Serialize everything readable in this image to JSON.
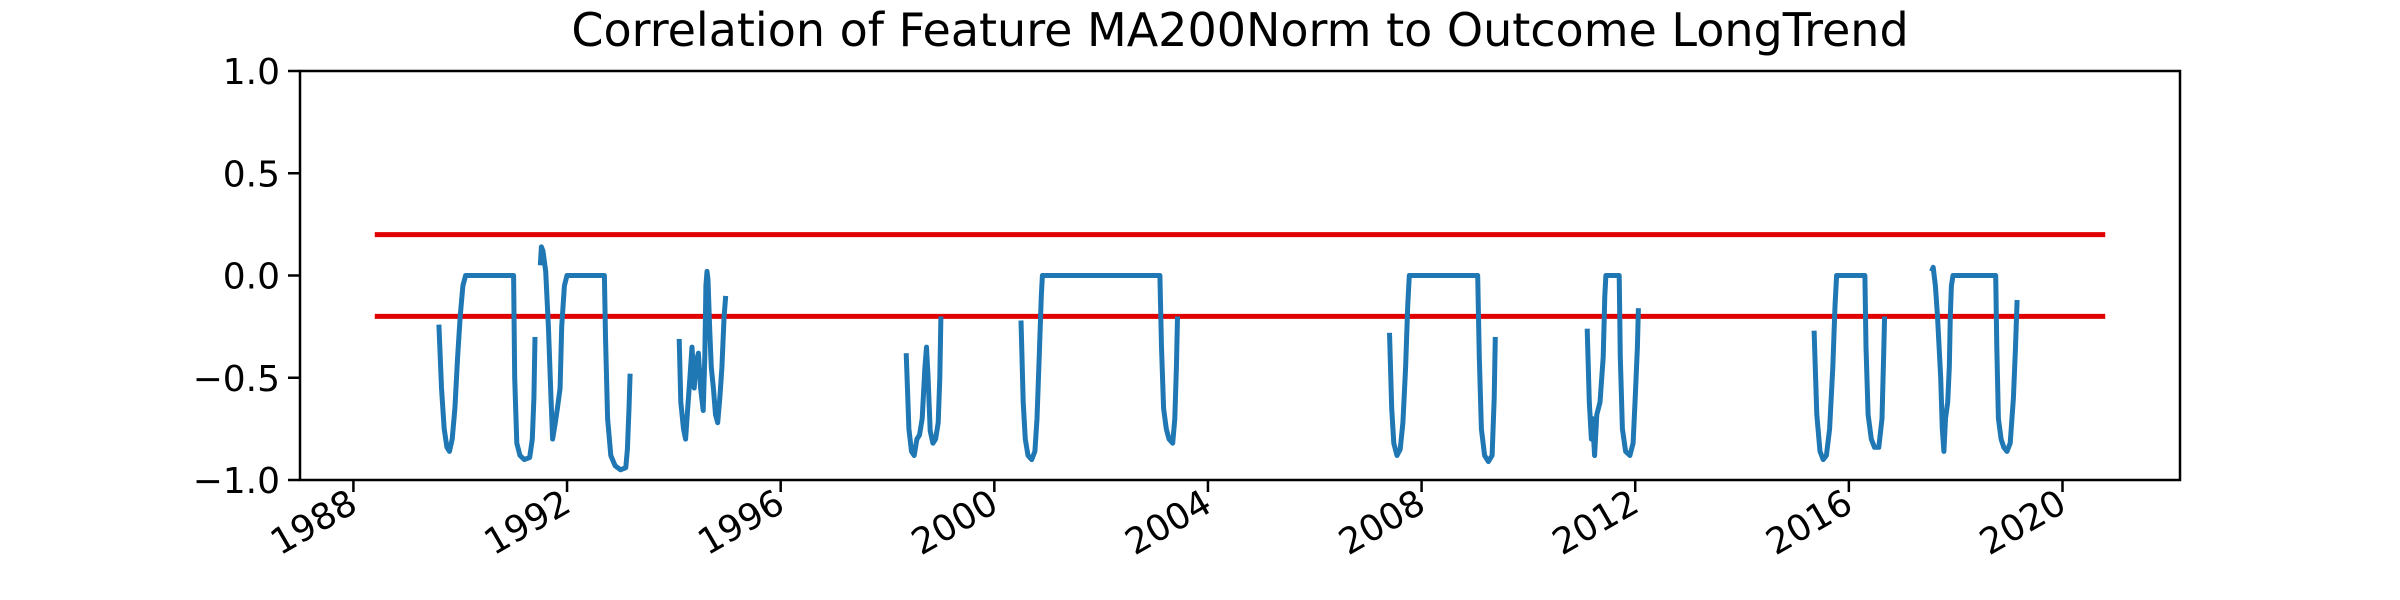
{
  "chart_data": {
    "type": "line",
    "title": "Correlation of Feature MA200Norm to Outcome LongTrend",
    "xlabel": "",
    "ylabel": "",
    "xlim": [
      1987.0,
      2022.2
    ],
    "ylim": [
      -1.0,
      1.0
    ],
    "x_ticks": [
      1988,
      1992,
      1996,
      2000,
      2004,
      2008,
      2012,
      2016,
      2020
    ],
    "x_tick_labels": [
      "1988",
      "1992",
      "1996",
      "2000",
      "2004",
      "2008",
      "2012",
      "2016",
      "2020"
    ],
    "y_ticks": [
      1.0,
      0.5,
      0.0,
      -0.5,
      -1.0
    ],
    "y_tick_labels": [
      "1.0",
      "0.5",
      "0.0",
      "−0.5",
      "−1.0"
    ],
    "grid": false,
    "colors": {
      "series": "#1f77b4",
      "reference": "#e00000"
    },
    "reference_lines": [
      {
        "y": 0.2,
        "x_range": [
          1988.4,
          2020.8
        ]
      },
      {
        "y": -0.2,
        "x_range": [
          1988.4,
          2020.8
        ]
      }
    ],
    "series": [
      {
        "segments": [
          [
            [
              1989.6,
              -0.24
            ],
            [
              1989.65,
              -0.55
            ],
            [
              1989.7,
              -0.75
            ],
            [
              1989.75,
              -0.84
            ],
            [
              1989.8,
              -0.86
            ],
            [
              1989.85,
              -0.8
            ],
            [
              1989.9,
              -0.65
            ],
            [
              1989.95,
              -0.4
            ],
            [
              1990.0,
              -0.2
            ],
            [
              1990.05,
              -0.05
            ],
            [
              1990.1,
              0.0
            ],
            [
              1990.5,
              0.0
            ],
            [
              1990.9,
              0.0
            ],
            [
              1991.0,
              0.0
            ],
            [
              1991.02,
              -0.5
            ],
            [
              1991.06,
              -0.82
            ],
            [
              1991.12,
              -0.88
            ],
            [
              1991.2,
              -0.9
            ],
            [
              1991.3,
              -0.89
            ],
            [
              1991.35,
              -0.8
            ],
            [
              1991.38,
              -0.6
            ],
            [
              1991.4,
              -0.3
            ]
          ],
          [
            [
              1991.5,
              0.05
            ],
            [
              1991.52,
              0.14
            ],
            [
              1991.55,
              0.12
            ],
            [
              1991.6,
              0.02
            ],
            [
              1991.65,
              -0.25
            ],
            [
              1991.7,
              -0.6
            ],
            [
              1991.73,
              -0.8
            ],
            [
              1991.78,
              -0.72
            ],
            [
              1991.82,
              -0.65
            ],
            [
              1991.87,
              -0.55
            ],
            [
              1991.9,
              -0.25
            ],
            [
              1991.95,
              -0.05
            ],
            [
              1992.0,
              0.0
            ],
            [
              1992.4,
              0.0
            ],
            [
              1992.7,
              0.0
            ],
            [
              1992.72,
              -0.3
            ],
            [
              1992.76,
              -0.7
            ],
            [
              1992.82,
              -0.88
            ],
            [
              1992.9,
              -0.93
            ],
            [
              1993.0,
              -0.95
            ],
            [
              1993.1,
              -0.94
            ],
            [
              1993.13,
              -0.85
            ],
            [
              1993.16,
              -0.65
            ],
            [
              1993.18,
              -0.48
            ]
          ],
          [
            [
              1994.1,
              -0.31
            ],
            [
              1994.13,
              -0.62
            ],
            [
              1994.18,
              -0.75
            ],
            [
              1994.22,
              -0.8
            ],
            [
              1994.26,
              -0.65
            ],
            [
              1994.3,
              -0.5
            ],
            [
              1994.34,
              -0.35
            ],
            [
              1994.38,
              -0.55
            ],
            [
              1994.42,
              -0.42
            ],
            [
              1994.46,
              -0.38
            ],
            [
              1994.5,
              -0.55
            ],
            [
              1994.55,
              -0.66
            ],
            [
              1994.58,
              -0.4
            ],
            [
              1994.6,
              -0.05
            ],
            [
              1994.62,
              0.02
            ],
            [
              1994.64,
              -0.02
            ],
            [
              1994.67,
              -0.25
            ],
            [
              1994.7,
              -0.45
            ],
            [
              1994.74,
              -0.55
            ],
            [
              1994.78,
              -0.68
            ],
            [
              1994.82,
              -0.72
            ],
            [
              1994.86,
              -0.6
            ],
            [
              1994.9,
              -0.45
            ],
            [
              1994.94,
              -0.2
            ],
            [
              1994.97,
              -0.1
            ]
          ],
          [
            [
              1998.35,
              -0.38
            ],
            [
              1998.4,
              -0.75
            ],
            [
              1998.45,
              -0.86
            ],
            [
              1998.5,
              -0.88
            ],
            [
              1998.55,
              -0.8
            ],
            [
              1998.6,
              -0.78
            ],
            [
              1998.65,
              -0.7
            ],
            [
              1998.7,
              -0.45
            ],
            [
              1998.73,
              -0.35
            ],
            [
              1998.76,
              -0.5
            ],
            [
              1998.8,
              -0.76
            ],
            [
              1998.85,
              -0.82
            ],
            [
              1998.9,
              -0.8
            ],
            [
              1998.95,
              -0.72
            ],
            [
              1998.98,
              -0.5
            ],
            [
              1999.0,
              -0.2
            ]
          ],
          [
            [
              2000.5,
              -0.22
            ],
            [
              2000.54,
              -0.62
            ],
            [
              2000.58,
              -0.8
            ],
            [
              2000.63,
              -0.88
            ],
            [
              2000.7,
              -0.9
            ],
            [
              2000.76,
              -0.86
            ],
            [
              2000.8,
              -0.7
            ],
            [
              2000.84,
              -0.4
            ],
            [
              2000.88,
              -0.1
            ],
            [
              2000.9,
              0.0
            ],
            [
              2002.0,
              0.0
            ],
            [
              2003.1,
              0.0
            ],
            [
              2003.13,
              -0.35
            ],
            [
              2003.17,
              -0.65
            ],
            [
              2003.22,
              -0.75
            ],
            [
              2003.27,
              -0.8
            ],
            [
              2003.34,
              -0.82
            ],
            [
              2003.38,
              -0.7
            ],
            [
              2003.41,
              -0.45
            ],
            [
              2003.43,
              -0.2
            ]
          ],
          [
            [
              2007.4,
              -0.28
            ],
            [
              2007.44,
              -0.65
            ],
            [
              2007.48,
              -0.82
            ],
            [
              2007.54,
              -0.88
            ],
            [
              2007.6,
              -0.85
            ],
            [
              2007.65,
              -0.72
            ],
            [
              2007.7,
              -0.45
            ],
            [
              2007.74,
              -0.15
            ],
            [
              2007.77,
              0.0
            ],
            [
              2008.5,
              0.0
            ],
            [
              2009.05,
              0.0
            ],
            [
              2009.08,
              -0.4
            ],
            [
              2009.12,
              -0.75
            ],
            [
              2009.18,
              -0.88
            ],
            [
              2009.25,
              -0.91
            ],
            [
              2009.32,
              -0.88
            ],
            [
              2009.36,
              -0.6
            ],
            [
              2009.38,
              -0.3
            ]
          ],
          [
            [
              2011.1,
              -0.26
            ],
            [
              2011.14,
              -0.62
            ],
            [
              2011.18,
              -0.8
            ],
            [
              2011.2,
              -0.7
            ],
            [
              2011.24,
              -0.88
            ],
            [
              2011.28,
              -0.68
            ],
            [
              2011.34,
              -0.62
            ],
            [
              2011.4,
              -0.4
            ],
            [
              2011.43,
              -0.1
            ],
            [
              2011.45,
              0.0
            ],
            [
              2011.7,
              0.0
            ],
            [
              2011.72,
              -0.4
            ],
            [
              2011.76,
              -0.75
            ],
            [
              2011.82,
              -0.86
            ],
            [
              2011.9,
              -0.88
            ],
            [
              2011.96,
              -0.82
            ],
            [
              2012.0,
              -0.6
            ],
            [
              2012.04,
              -0.35
            ],
            [
              2012.06,
              -0.16
            ]
          ],
          [
            [
              2015.35,
              -0.27
            ],
            [
              2015.4,
              -0.68
            ],
            [
              2015.46,
              -0.86
            ],
            [
              2015.52,
              -0.9
            ],
            [
              2015.58,
              -0.88
            ],
            [
              2015.64,
              -0.75
            ],
            [
              2015.7,
              -0.45
            ],
            [
              2015.74,
              -0.15
            ],
            [
              2015.77,
              0.0
            ],
            [
              2016.0,
              0.0
            ],
            [
              2016.3,
              0.0
            ],
            [
              2016.32,
              -0.35
            ],
            [
              2016.36,
              -0.68
            ],
            [
              2016.42,
              -0.8
            ],
            [
              2016.48,
              -0.84
            ],
            [
              2016.56,
              -0.84
            ],
            [
              2016.62,
              -0.7
            ],
            [
              2016.65,
              -0.4
            ],
            [
              2016.67,
              -0.2
            ]
          ],
          [
            [
              2017.55,
              0.02
            ],
            [
              2017.58,
              0.04
            ],
            [
              2017.62,
              -0.05
            ],
            [
              2017.66,
              -0.2
            ],
            [
              2017.72,
              -0.5
            ],
            [
              2017.75,
              -0.75
            ],
            [
              2017.78,
              -0.86
            ],
            [
              2017.81,
              -0.7
            ],
            [
              2017.85,
              -0.62
            ],
            [
              2017.88,
              -0.45
            ],
            [
              2017.9,
              -0.2
            ],
            [
              2017.92,
              -0.05
            ],
            [
              2017.95,
              0.0
            ],
            [
              2018.3,
              0.0
            ],
            [
              2018.75,
              0.0
            ],
            [
              2018.77,
              -0.35
            ],
            [
              2018.8,
              -0.7
            ],
            [
              2018.85,
              -0.8
            ],
            [
              2018.9,
              -0.84
            ],
            [
              2018.96,
              -0.86
            ],
            [
              2019.02,
              -0.82
            ],
            [
              2019.08,
              -0.6
            ],
            [
              2019.12,
              -0.35
            ],
            [
              2019.15,
              -0.12
            ]
          ]
        ]
      }
    ]
  }
}
